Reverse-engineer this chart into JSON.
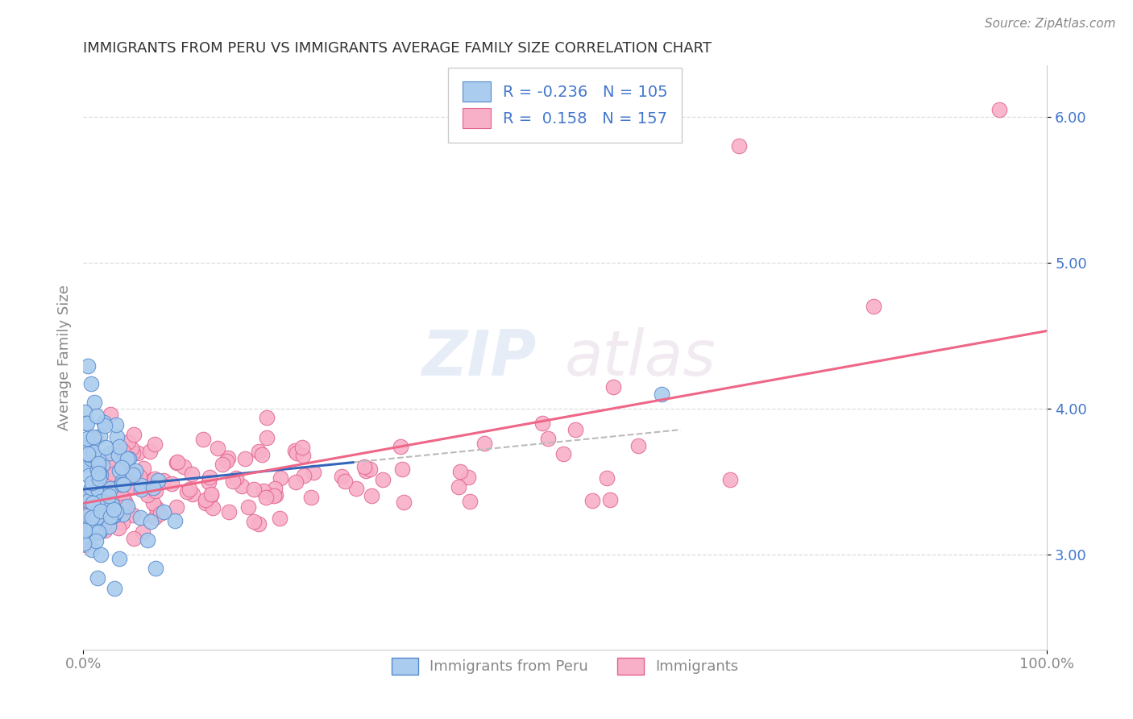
{
  "title": "IMMIGRANTS FROM PERU VS IMMIGRANTS AVERAGE FAMILY SIZE CORRELATION CHART",
  "source": "Source: ZipAtlas.com",
  "ylabel": "Average Family Size",
  "xlim": [
    0,
    1
  ],
  "ylim": [
    2.35,
    6.35
  ],
  "yticks": [
    3.0,
    4.0,
    5.0,
    6.0
  ],
  "xtick_labels": [
    "0.0%",
    "100.0%"
  ],
  "series1_color": "#aaccee",
  "series1_edge": "#5588cc",
  "series2_color": "#f8b0c8",
  "series2_edge": "#e06090",
  "trend1_color": "#3366bb",
  "trend2_color": "#ee6688",
  "trend_dash_color": "#bbbbbb",
  "watermark_zip": "ZIP",
  "watermark_atlas": "atlas",
  "background": "#ffffff",
  "grid_color": "#dddddd",
  "title_color": "#333333",
  "label_color": "#888888",
  "yaxis_color": "#4477cc",
  "R1": -0.236,
  "N1": 105,
  "R2": 0.158,
  "N2": 157,
  "legend_label1": "R = -0.236   N = 105",
  "legend_label2": "R =  0.158   N = 157",
  "bottom_label1": "Immigrants from Peru",
  "bottom_label2": "Immigrants"
}
